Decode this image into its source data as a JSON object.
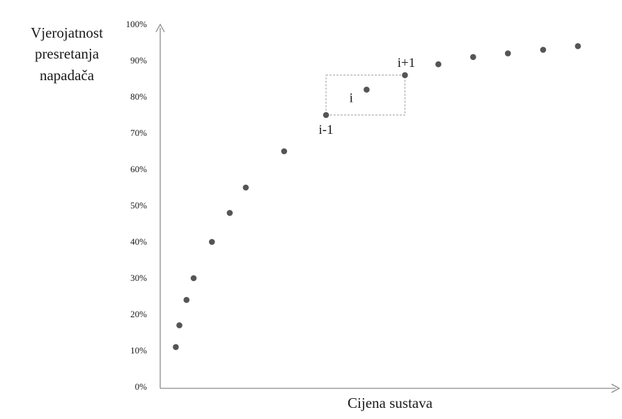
{
  "chart_data": {
    "type": "scatter",
    "title": "",
    "xlabel": "Cijena sustava",
    "ylabel_lines": [
      "Vjerojatnost",
      "presretanja",
      "napadača"
    ],
    "y_ticks": [
      "0%",
      "10%",
      "20%",
      "30%",
      "40%",
      "50%",
      "60%",
      "70%",
      "80%",
      "90%",
      "100%"
    ],
    "ylim": [
      0,
      100
    ],
    "xlim": [
      0,
      100
    ],
    "grid": false,
    "legend": "none",
    "point_color": "#555555",
    "series": [
      {
        "points": [
          {
            "x": 3.5,
            "y": 11
          },
          {
            "x": 4.3,
            "y": 17
          },
          {
            "x": 5.9,
            "y": 24
          },
          {
            "x": 7.5,
            "y": 30
          },
          {
            "x": 11.6,
            "y": 40
          },
          {
            "x": 15.6,
            "y": 48
          },
          {
            "x": 19.2,
            "y": 55
          },
          {
            "x": 27.8,
            "y": 65
          },
          {
            "x": 37.2,
            "y": 75,
            "label": "i-1"
          },
          {
            "x": 46.3,
            "y": 82,
            "label": "i"
          },
          {
            "x": 54.9,
            "y": 86,
            "label": "i+1"
          },
          {
            "x": 62.4,
            "y": 89
          },
          {
            "x": 70.2,
            "y": 91
          },
          {
            "x": 78.0,
            "y": 92
          },
          {
            "x": 85.9,
            "y": 93
          },
          {
            "x": 93.7,
            "y": 94
          }
        ]
      }
    ],
    "highlight_box": {
      "x_from": 37.2,
      "x_to": 54.9,
      "y_from": 75,
      "y_to": 86
    }
  }
}
